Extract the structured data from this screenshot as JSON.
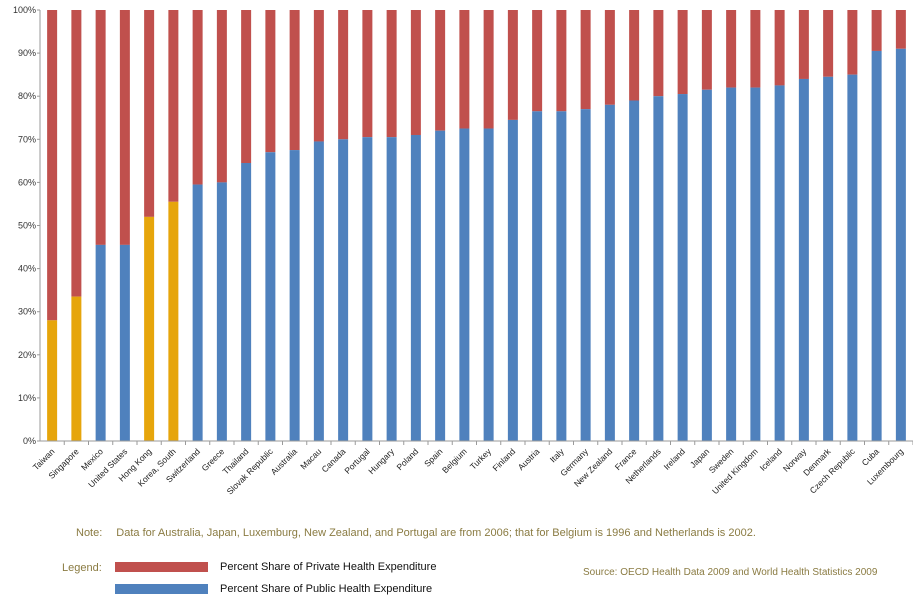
{
  "chart_data": {
    "type": "bar",
    "stacked": true,
    "categories": [
      "Taiwan",
      "Singapore",
      "Mexico",
      "United States",
      "Hong Kong",
      "Korea, South",
      "Switzerland",
      "Greece",
      "Thailand",
      "Slovak Republic",
      "Australia",
      "Macau",
      "Canada",
      "Portugal",
      "Hungary",
      "Poland",
      "Spain",
      "Belgium",
      "Turkey",
      "Finland",
      "Austria",
      "Italy",
      "Germany",
      "New Zealand",
      "France",
      "Netherlands",
      "Ireland",
      "Japan",
      "Sweden",
      "United Kingdom",
      "Iceland",
      "Norway",
      "Denmark",
      "Czech Republic",
      "Cuba",
      "Luxembourg"
    ],
    "highlighted": [
      "Taiwan",
      "Singapore",
      "Hong Kong",
      "Korea, South"
    ],
    "series": [
      {
        "name": "Percent Share of Public Health Expenditure",
        "values": [
          28,
          33.5,
          45.5,
          45.5,
          52,
          55.5,
          59.5,
          60,
          64.5,
          67,
          67.5,
          69.5,
          70,
          70.5,
          70.5,
          71,
          72,
          72.5,
          72.5,
          74.5,
          76.5,
          76.5,
          77,
          78,
          79,
          80,
          80.5,
          81.5,
          82,
          82,
          82.5,
          84,
          84.5,
          85,
          90.5,
          91
        ]
      },
      {
        "name": "Percent Share of Private Health Expenditure",
        "values": [
          72,
          66.5,
          54.5,
          54.5,
          48,
          44.5,
          40.5,
          40,
          35.5,
          33,
          32.5,
          30.5,
          30,
          29.5,
          29.5,
          29,
          28,
          27.5,
          27.5,
          25.5,
          23.5,
          23.5,
          23,
          22,
          21,
          20,
          19.5,
          18.5,
          18,
          18,
          17.5,
          16,
          15.5,
          15,
          9.5,
          9
        ]
      }
    ],
    "yticks": [
      "0%",
      "10%",
      "20%",
      "30%",
      "40%",
      "50%",
      "60%",
      "70%",
      "80%",
      "90%",
      "100%"
    ],
    "ylim": [
      0,
      100
    ],
    "grid": false,
    "colors": {
      "public": "#4f81bd",
      "private": "#c0504d",
      "highlight": "#e6a50b"
    }
  },
  "note": {
    "label": "Note:",
    "text": "Data for Australia, Japan, Luxemburg, New Zealand, and Portugal are from 2006; that for Belgium is 1996 and Netherlands is 2002."
  },
  "legend": {
    "label": "Legend:",
    "items": [
      {
        "text": "Percent Share of Private Health Expenditure",
        "color": "#c0504d"
      },
      {
        "text": "Percent Share of Public Health Expenditure",
        "color": "#4f81bd"
      }
    ]
  },
  "source": "Source: OECD Health Data 2009 and World Health Statistics  2009"
}
